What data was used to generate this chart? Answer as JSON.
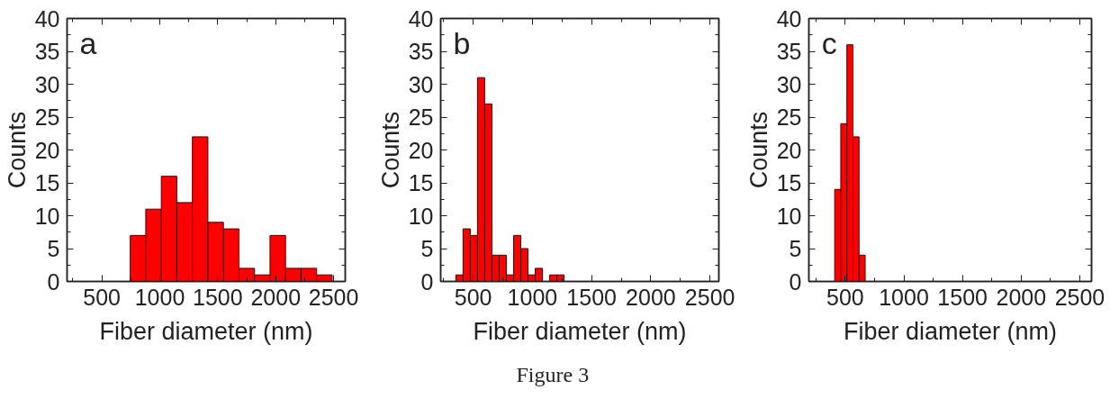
{
  "chart_data": [
    {
      "type": "histogram",
      "annotations": [
        "a"
      ],
      "xlabel": "Fiber diameter (nm)",
      "ylabel": "Counts",
      "bins": [
        745,
        879,
        1013,
        1147,
        1281,
        1415,
        1549,
        1683,
        1817,
        1951,
        2085,
        2219,
        2353,
        2487
      ],
      "values": [
        7,
        11,
        16,
        12,
        22,
        9,
        8,
        2,
        1,
        7,
        2,
        2,
        1
      ],
      "color": "#ff0000",
      "xlim": [
        200,
        2600
      ],
      "ylim": [
        0,
        40
      ],
      "xticks": [
        {
          "value": 250,
          "label": null
        },
        500,
        {
          "value": 750,
          "label": null
        },
        1000,
        {
          "value": 1250,
          "label": null
        },
        1500,
        {
          "value": 1750,
          "label": null
        },
        2000,
        {
          "value": 2250,
          "label": null
        },
        2500
      ],
      "yticks": [
        0,
        {
          "value": 2.5,
          "label": null
        },
        5,
        {
          "value": 7.5,
          "label": null
        },
        10,
        {
          "value": 12.5,
          "label": null
        },
        15,
        {
          "value": 17.5,
          "label": null
        },
        20,
        {
          "value": 22.5,
          "label": null
        },
        25,
        {
          "value": 27.5,
          "label": null
        },
        30,
        {
          "value": 32.5,
          "label": null
        },
        35,
        {
          "value": 37.5,
          "label": null
        },
        40
      ]
    },
    {
      "type": "histogram",
      "annotations": [
        "b",
        "Figure 3"
      ],
      "xlabel": "Fiber diameter (nm)",
      "ylabel": "Counts",
      "bins": [
        353,
        414,
        475,
        536,
        597,
        658,
        719,
        780,
        841,
        902,
        963,
        1024,
        1085,
        1146,
        1207,
        1268
      ],
      "values": [
        1,
        8,
        7,
        31,
        27,
        4,
        4,
        1,
        7,
        5,
        1,
        2,
        0,
        1,
        1
      ],
      "color": "#ff0000",
      "xlim": [
        225,
        2575
      ],
      "ylim": [
        0,
        40
      ],
      "xticks": [
        {
          "value": 250,
          "label": null
        },
        500,
        {
          "value": 750,
          "label": null
        },
        1000,
        {
          "value": 1250,
          "label": null
        },
        1500,
        {
          "value": 1750,
          "label": null
        },
        2000,
        {
          "value": 2250,
          "label": null
        },
        2500
      ],
      "yticks": [
        0,
        {
          "value": 2.5,
          "label": null
        },
        5,
        {
          "value": 7.5,
          "label": null
        },
        10,
        {
          "value": 12.5,
          "label": null
        },
        15,
        {
          "value": 17.5,
          "label": null
        },
        20,
        {
          "value": 22.5,
          "label": null
        },
        25,
        {
          "value": 27.5,
          "label": null
        },
        30,
        {
          "value": 32.5,
          "label": null
        },
        35,
        {
          "value": 37.5,
          "label": null
        },
        40
      ]
    },
    {
      "type": "histogram",
      "annotations": [
        "c"
      ],
      "xlabel": "Fiber diameter (nm)",
      "ylabel": "Counts",
      "bins": [
        410,
        462,
        514,
        566,
        618,
        670
      ],
      "values": [
        14,
        24,
        36,
        22,
        4
      ],
      "color": "#ff0000",
      "xlim": [
        190,
        2600
      ],
      "ylim": [
        0,
        40
      ],
      "xticks": [
        {
          "value": 250,
          "label": null
        },
        500,
        {
          "value": 750,
          "label": null
        },
        1000,
        {
          "value": 1250,
          "label": null
        },
        1500,
        {
          "value": 1750,
          "label": null
        },
        2000,
        {
          "value": 2250,
          "label": null
        },
        2500
      ],
      "yticks": [
        0,
        {
          "value": 2.5,
          "label": null
        },
        5,
        {
          "value": 7.5,
          "label": null
        },
        10,
        {
          "value": 12.5,
          "label": null
        },
        15,
        {
          "value": 17.5,
          "label": null
        },
        20,
        {
          "value": 22.5,
          "label": null
        },
        25,
        {
          "value": 27.5,
          "label": null
        },
        30,
        {
          "value": 32.5,
          "label": null
        },
        35,
        {
          "value": 37.5,
          "label": null
        },
        40
      ]
    }
  ]
}
